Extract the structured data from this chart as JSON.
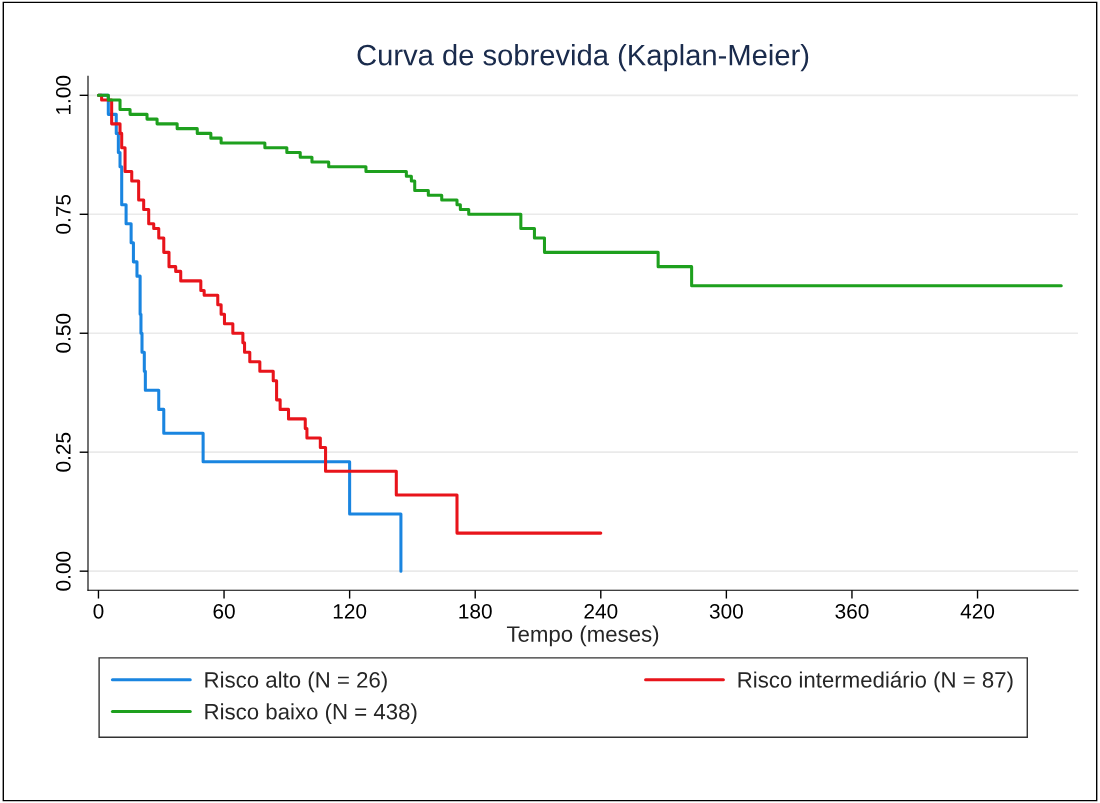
{
  "chart_data": {
    "type": "step",
    "title": "Curva de sobrevida (Kaplan-Meier)",
    "xlabel": "Tempo (meses)",
    "xlim": [
      -5,
      468
    ],
    "xticks": [
      0,
      60,
      120,
      180,
      240,
      300,
      360,
      420
    ],
    "ylim": [
      -0.04,
      1.04
    ],
    "yticks": [
      {
        "value": 0,
        "label": "0.00"
      },
      {
        "value": 0.25,
        "label": "0.25"
      },
      {
        "value": 0.5,
        "label": "0.50"
      },
      {
        "value": 0.75,
        "label": "0.75"
      },
      {
        "value": 1,
        "label": "1.00"
      }
    ],
    "grid": "y",
    "legend": "bottom",
    "line_style": "solid",
    "marker": "none",
    "series": [
      {
        "name": "Risco alto (N = 26)",
        "color": "#1a85e0",
        "x": [
          0,
          4.7,
          8.5,
          9.5,
          10.3,
          11.1,
          13.2,
          15.6,
          16.7,
          18.4,
          19.9,
          20.3,
          20.8,
          21.9,
          22.4,
          28.8,
          31.2,
          50,
          120,
          144.5
        ],
        "values": [
          1,
          0.96,
          0.92,
          0.88,
          0.85,
          0.77,
          0.73,
          0.69,
          0.65,
          0.62,
          0.54,
          0.5,
          0.46,
          0.42,
          0.38,
          0.34,
          0.29,
          0.23,
          0.12,
          0
        ]
      },
      {
        "name": "Risco intermediário (N = 87)",
        "color": "#e8141b",
        "x": [
          0,
          1.5,
          6.3,
          10.3,
          11.1,
          12.7,
          15.9,
          19.2,
          21.6,
          24,
          26.4,
          28.8,
          31.2,
          33.7,
          36.9,
          39.3,
          48.9,
          50.5,
          57,
          58.6,
          60.2,
          64.2,
          69,
          69.8,
          72.3,
          77.1,
          83.5,
          85.1,
          86.8,
          90.8,
          98.8,
          99.6,
          106,
          108.5,
          142.3,
          171.3,
          240
        ],
        "values": [
          1,
          0.99,
          0.94,
          0.92,
          0.89,
          0.84,
          0.82,
          0.78,
          0.76,
          0.73,
          0.72,
          0.7,
          0.67,
          0.64,
          0.63,
          0.61,
          0.59,
          0.58,
          0.56,
          0.54,
          0.52,
          0.5,
          0.48,
          0.46,
          0.44,
          0.42,
          0.4,
          0.36,
          0.34,
          0.32,
          0.3,
          0.28,
          0.26,
          0.21,
          0.16,
          0.08,
          0.08
        ]
      },
      {
        "name": "Risco baixo (N = 438)",
        "color": "#1ea01e",
        "x": [
          0,
          4.7,
          10.3,
          15.1,
          19.9,
          23.2,
          28,
          37.6,
          42.4,
          47.2,
          50.5,
          53.7,
          58.6,
          79.5,
          90,
          96.4,
          102,
          110,
          127.8,
          129.4,
          147.1,
          149.5,
          151.1,
          157.6,
          164,
          171.3,
          172.9,
          176.9,
          201.8,
          208.3,
          213.1,
          267.4,
          283.4,
          460
        ],
        "values": [
          1,
          0.99,
          0.97,
          0.96,
          0.96,
          0.95,
          0.94,
          0.93,
          0.93,
          0.92,
          0.92,
          0.91,
          0.9,
          0.89,
          0.88,
          0.87,
          0.86,
          0.85,
          0.84,
          0.84,
          0.83,
          0.82,
          0.8,
          0.79,
          0.78,
          0.77,
          0.76,
          0.75,
          0.72,
          0.7,
          0.67,
          0.64,
          0.6,
          0.6
        ]
      }
    ]
  }
}
